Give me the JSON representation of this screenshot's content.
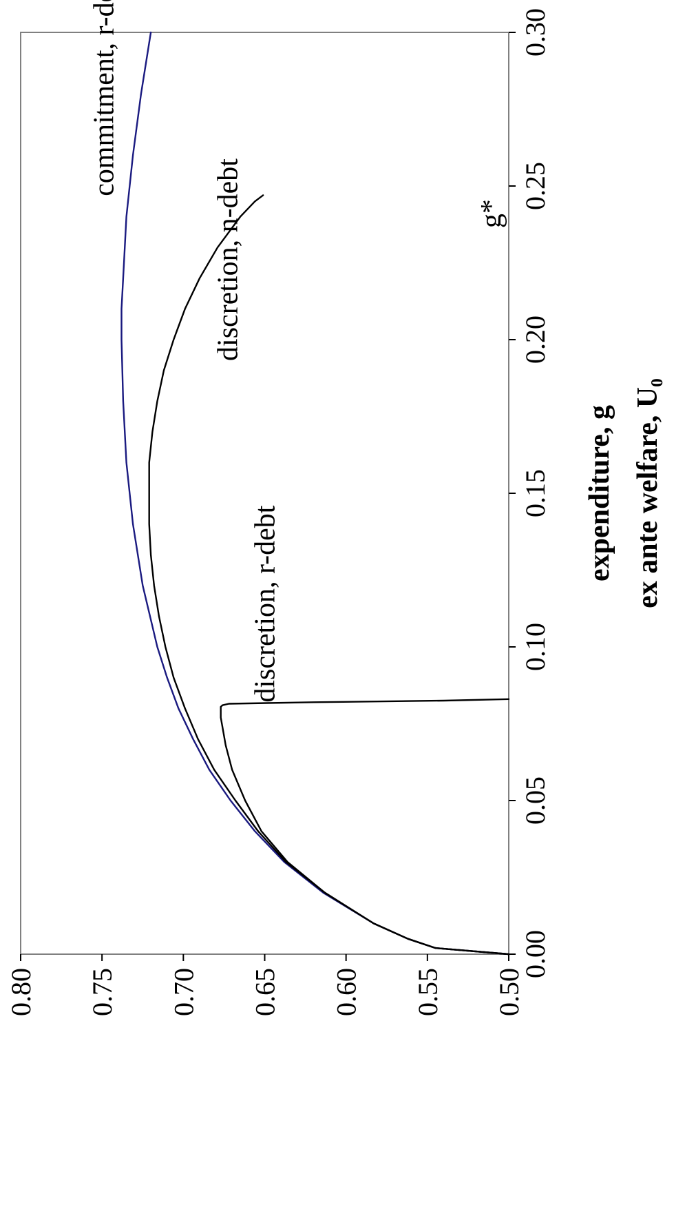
{
  "chart_data": {
    "type": "line",
    "orientation": "rotated-90-clockwise",
    "xlabel": "expenditure, g",
    "ylabel": "ex ante welfare, U₀",
    "xlim": [
      0.0,
      0.3
    ],
    "ylim": [
      0.5,
      0.8
    ],
    "xticks": [
      "0.00",
      "0.05",
      "0.10",
      "0.15",
      "0.20",
      "0.25",
      "0.30"
    ],
    "yticks": [
      "0.50",
      "0.55",
      "0.60",
      "0.65",
      "0.70",
      "0.75",
      "0.80"
    ],
    "grid": false,
    "legend": "none",
    "series": [
      {
        "color": "#1a1a80",
        "x": [
          0.0,
          0.002,
          0.005,
          0.01,
          0.02,
          0.03,
          0.04,
          0.05,
          0.06,
          0.07,
          0.08,
          0.09,
          0.1,
          0.12,
          0.14,
          0.16,
          0.18,
          0.2,
          0.21,
          0.22,
          0.24,
          0.26,
          0.28,
          0.3
        ],
        "y": [
          0.5,
          0.545,
          0.562,
          0.583,
          0.614,
          0.638,
          0.656,
          0.671,
          0.684,
          0.694,
          0.703,
          0.71,
          0.716,
          0.725,
          0.731,
          0.735,
          0.737,
          0.738,
          0.738,
          0.737,
          0.735,
          0.731,
          0.726,
          0.72
        ]
      },
      {
        "color": "#000000",
        "x": [
          0.0,
          0.002,
          0.005,
          0.01,
          0.02,
          0.03,
          0.04,
          0.05,
          0.06,
          0.07,
          0.08,
          0.09,
          0.1,
          0.11,
          0.12,
          0.13,
          0.14,
          0.15,
          0.16,
          0.17,
          0.18,
          0.19,
          0.2,
          0.21,
          0.22,
          0.23,
          0.24,
          0.245,
          0.247
        ],
        "y": [
          0.5,
          0.545,
          0.562,
          0.583,
          0.613,
          0.637,
          0.654,
          0.668,
          0.681,
          0.691,
          0.699,
          0.706,
          0.711,
          0.715,
          0.718,
          0.72,
          0.721,
          0.721,
          0.721,
          0.719,
          0.716,
          0.712,
          0.706,
          0.699,
          0.69,
          0.679,
          0.665,
          0.656,
          0.651
        ]
      },
      {
        "color": "#000000",
        "x": [
          0.0,
          0.002,
          0.005,
          0.01,
          0.02,
          0.03,
          0.04,
          0.05,
          0.06,
          0.068,
          0.074,
          0.077,
          0.079,
          0.0805,
          0.081,
          0.0815,
          0.082,
          0.0825,
          0.083
        ],
        "y": [
          0.5,
          0.545,
          0.562,
          0.583,
          0.613,
          0.636,
          0.652,
          0.662,
          0.67,
          0.674,
          0.676,
          0.677,
          0.677,
          0.677,
          0.676,
          0.672,
          0.62,
          0.54,
          0.5
        ]
      }
    ],
    "annotations": [
      {
        "text": "commitment, r-debt",
        "x": 0.284,
        "y": 0.743
      },
      {
        "text": "discretion, n-debt",
        "x": 0.226,
        "y": 0.667
      },
      {
        "text": "discretion, r-debt",
        "x": 0.114,
        "y": 0.644
      },
      {
        "text": "g*",
        "x": 0.241,
        "y": 0.505
      }
    ]
  }
}
